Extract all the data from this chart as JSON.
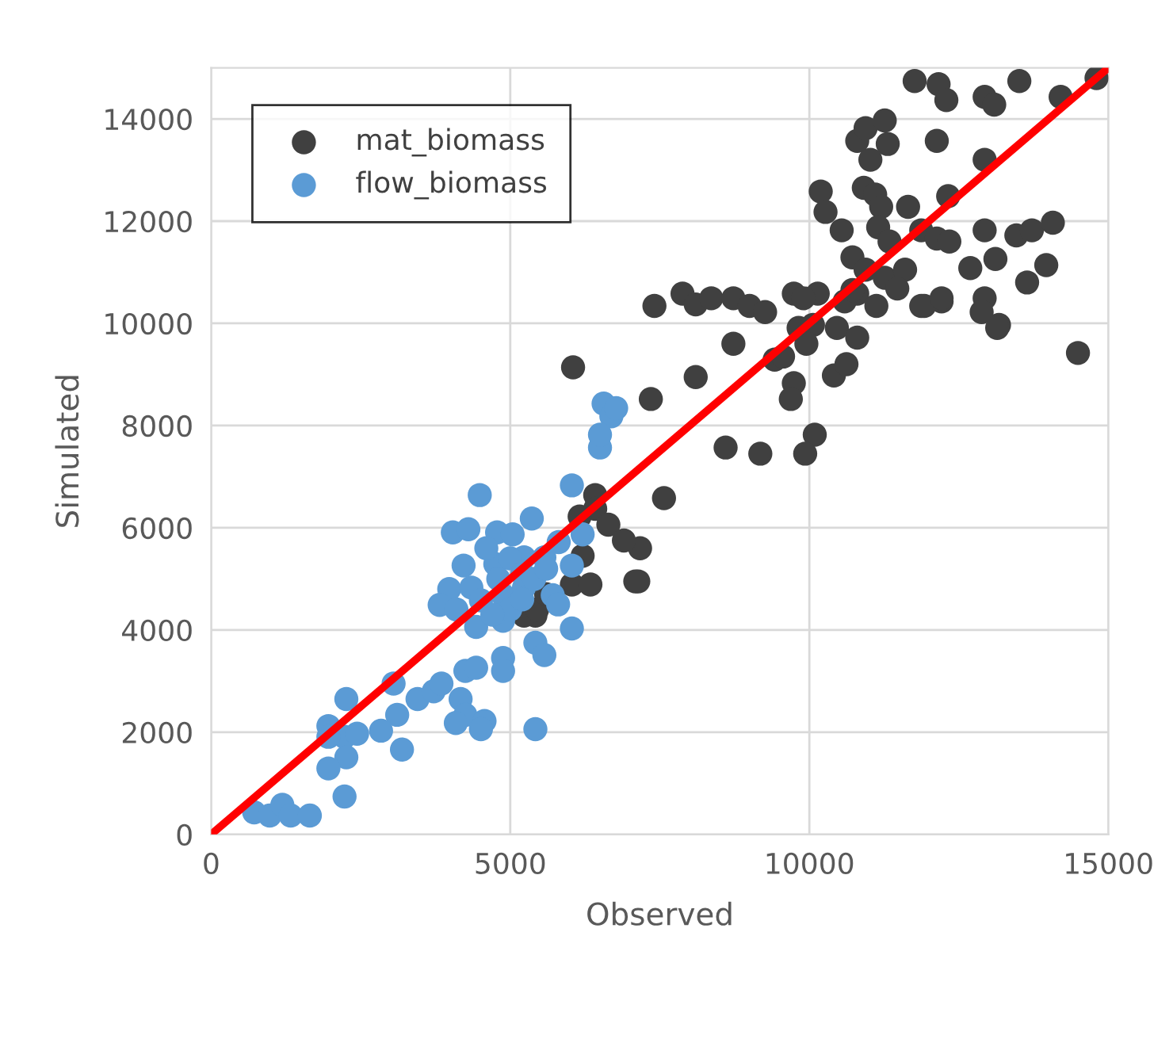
{
  "chart_data": {
    "type": "scatter",
    "xlabel": "Observed",
    "ylabel": "Simulated",
    "xlim": [
      0,
      15000
    ],
    "ylim": [
      0,
      15000
    ],
    "xticks": [
      0,
      5000,
      10000,
      15000
    ],
    "yticks": [
      0,
      2000,
      4000,
      6000,
      8000,
      10000,
      12000,
      14000
    ],
    "grid": true,
    "legend": "top left",
    "series": [
      {
        "name": "mat_biomass",
        "color": "#404040",
        "marker": "circle",
        "x": [
          11760,
          12160,
          12290,
          12930,
          13090,
          13510,
          14200,
          14800,
          10800,
          10940,
          11260,
          11310,
          11020,
          12130,
          12930,
          12320,
          10190,
          10270,
          10910,
          11100,
          11200,
          11650,
          10540,
          11150,
          11340,
          11870,
          12130,
          12340,
          12930,
          13460,
          13720,
          14070,
          12690,
          13110,
          13960,
          13640,
          12930,
          13170,
          12210,
          11920,
          14490,
          10720,
          10940,
          11260,
          11600,
          10800,
          10590,
          10140,
          7410,
          7880,
          8100,
          8360,
          8730,
          9000,
          9260,
          9740,
          9900,
          9820,
          10060,
          9950,
          10460,
          10800,
          9420,
          9560,
          8730,
          8100,
          7350,
          9740,
          9690,
          10410,
          10620,
          10720,
          11120,
          11470,
          11870,
          12210,
          12880,
          13140,
          10090,
          9930,
          8600,
          9180,
          7570,
          7170,
          7140,
          6050,
          6420,
          6420,
          6160,
          6640,
          6900,
          6210,
          6030,
          6340,
          7090,
          5420,
          5230,
          5450,
          5600
        ],
        "values": [
          14740,
          14680,
          14370,
          14430,
          14280,
          14740,
          14430,
          14800,
          13570,
          13820,
          13970,
          13510,
          13200,
          13570,
          13200,
          12490,
          12580,
          12180,
          12650,
          12520,
          12280,
          12280,
          11820,
          11880,
          11600,
          11820,
          11660,
          11600,
          11820,
          11720,
          11820,
          11970,
          11080,
          11260,
          11140,
          10800,
          10490,
          9970,
          10430,
          10340,
          9420,
          11290,
          11050,
          10890,
          11050,
          10580,
          10430,
          10580,
          10340,
          10580,
          10370,
          10490,
          10490,
          10340,
          10220,
          10580,
          10490,
          9910,
          9970,
          9600,
          9910,
          9720,
          9290,
          9350,
          9600,
          8950,
          8520,
          8830,
          8520,
          8980,
          9200,
          10650,
          10340,
          10680,
          10340,
          10490,
          10220,
          9910,
          7820,
          7450,
          7570,
          7450,
          6580,
          5600,
          4950,
          9140,
          6640,
          6370,
          6220,
          6060,
          5750,
          5450,
          4890,
          4890,
          4950,
          4280,
          4280,
          4400,
          4700
        ]
      },
      {
        "name": "flow_biomass",
        "color": "#5b9bd5",
        "marker": "circle",
        "x": [
          4490,
          4040,
          4300,
          5360,
          4780,
          5040,
          6030,
          6500,
          6560,
          6690,
          6500,
          6770,
          6210,
          5810,
          4220,
          4750,
          5230,
          5570,
          6030,
          3980,
          3820,
          4350,
          4510,
          4880,
          5230,
          5710,
          4430,
          4880,
          5420,
          6030,
          5570,
          4880,
          4880,
          4250,
          4430,
          3050,
          2260,
          3450,
          3720,
          3850,
          4170,
          4250,
          4570,
          4510,
          4090,
          3110,
          2840,
          3190,
          1960,
          2230,
          2440,
          1960,
          2260,
          1960,
          2230,
          5420,
          720,
          980,
          1190,
          1330,
          1650,
          4600,
          5000,
          5200,
          4800,
          5400,
          5600,
          5000,
          4700,
          5200,
          5800,
          4100
        ],
        "values": [
          6640,
          5910,
          5970,
          6180,
          5910,
          5870,
          6830,
          7570,
          8430,
          8180,
          7820,
          8340,
          5870,
          5720,
          5260,
          5290,
          5420,
          5420,
          5260,
          4800,
          4490,
          4830,
          4580,
          4680,
          4830,
          4680,
          4060,
          4180,
          3750,
          4030,
          3510,
          3450,
          3200,
          3200,
          3260,
          2950,
          2650,
          2650,
          2800,
          2950,
          2650,
          2340,
          2220,
          2060,
          2180,
          2340,
          2030,
          1660,
          2120,
          1910,
          1970,
          1910,
          1510,
          1290,
          740,
          2060,
          430,
          370,
          580,
          370,
          370,
          5600,
          5400,
          5100,
          5000,
          5000,
          5200,
          4400,
          4300,
          4600,
          4500,
          4400
        ]
      },
      {
        "color": "#ff0000",
        "type": "line",
        "x": [
          0,
          15000
        ],
        "values": [
          0,
          15000
        ]
      }
    ]
  }
}
